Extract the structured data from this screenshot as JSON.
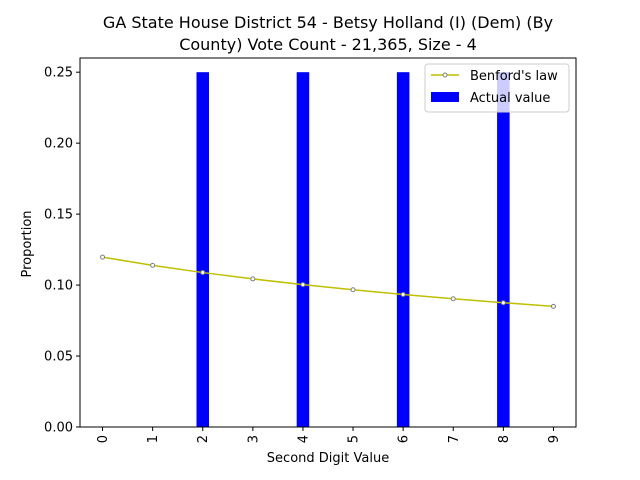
{
  "chart_data": {
    "type": "bar",
    "title_lines": [
      "GA State House District 54 - Betsy Holland (I) (Dem) (By",
      "County) Vote Count - 21,365, Size - 4"
    ],
    "xlabel": "Second Digit Value",
    "ylabel": "Proportion",
    "categories": [
      "0",
      "1",
      "2",
      "3",
      "4",
      "5",
      "6",
      "7",
      "8",
      "9"
    ],
    "x": [
      0,
      1,
      2,
      3,
      4,
      5,
      6,
      7,
      8,
      9
    ],
    "ylim": [
      0,
      0.26
    ],
    "yticks": [
      0.0,
      0.05,
      0.1,
      0.15,
      0.2,
      0.25
    ],
    "ytick_labels": [
      "0.00",
      "0.05",
      "0.10",
      "0.15",
      "0.20",
      "0.25"
    ],
    "series": [
      {
        "name": "Actual value",
        "kind": "bar",
        "color": "#0000ff",
        "values": [
          0,
          0,
          0.25,
          0,
          0.25,
          0,
          0.25,
          0,
          0.25,
          0
        ]
      },
      {
        "name": "Benford's law",
        "kind": "line",
        "color": "#bfbf00",
        "marker_color": "#7f7f7f",
        "values": [
          0.11968,
          0.11389,
          0.10882,
          0.10433,
          0.10031,
          0.09668,
          0.09337,
          0.09035,
          0.08757,
          0.085
        ]
      }
    ],
    "legend": {
      "placement": "top-right",
      "entries": [
        "Benford's law",
        "Actual value"
      ]
    }
  }
}
